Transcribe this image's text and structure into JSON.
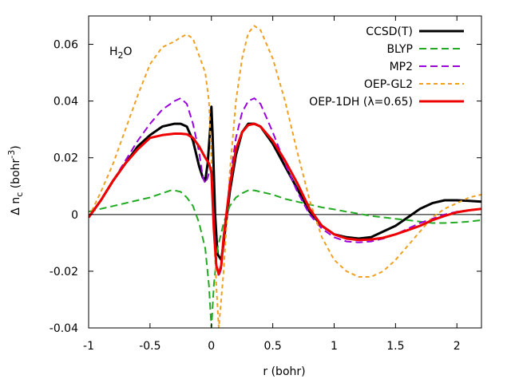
{
  "chart_data": {
    "type": "line",
    "annotation": {
      "text": "H",
      "sub": "2",
      "rest": "O"
    },
    "xlabel": "r (bohr)",
    "ylabel": {
      "pre": "Δ n",
      "sub": "c",
      "mid": " (bohr",
      "sup": "-3",
      "post": ")"
    },
    "xlim": [
      -1,
      2.2
    ],
    "ylim": [
      -0.04,
      0.07
    ],
    "xticks": [
      {
        "v": -1,
        "label": "-1"
      },
      {
        "v": -0.5,
        "label": "-0.5"
      },
      {
        "v": 0,
        "label": "0"
      },
      {
        "v": 0.5,
        "label": "0.5"
      },
      {
        "v": 1,
        "label": "1"
      },
      {
        "v": 1.5,
        "label": "1.5"
      },
      {
        "v": 2,
        "label": "2"
      }
    ],
    "yticks": [
      {
        "v": -0.04,
        "label": "-0.04"
      },
      {
        "v": -0.02,
        "label": "-0.02"
      },
      {
        "v": 0,
        "label": "0"
      },
      {
        "v": 0.02,
        "label": "0.02"
      },
      {
        "v": 0.04,
        "label": "0.04"
      },
      {
        "v": 0.06,
        "label": "0.06"
      }
    ],
    "grid": false,
    "legend_position": "top-right",
    "zero_line": true,
    "series": [
      {
        "name": "CCSD(T)",
        "color": "#000000",
        "dash": "solid",
        "points": [
          [
            -1,
            -0.001
          ],
          [
            -0.9,
            0.005
          ],
          [
            -0.8,
            0.012
          ],
          [
            -0.7,
            0.018
          ],
          [
            -0.6,
            0.024
          ],
          [
            -0.5,
            0.028
          ],
          [
            -0.4,
            0.031
          ],
          [
            -0.3,
            0.032
          ],
          [
            -0.25,
            0.032
          ],
          [
            -0.2,
            0.031
          ],
          [
            -0.15,
            0.026
          ],
          [
            -0.1,
            0.017
          ],
          [
            -0.07,
            0.013
          ],
          [
            -0.05,
            0.012
          ],
          [
            -0.03,
            0.018
          ],
          [
            -0.01,
            0.03
          ],
          [
            0.0,
            0.038
          ],
          [
            0.01,
            0.028
          ],
          [
            0.03,
            0.0
          ],
          [
            0.05,
            -0.014
          ],
          [
            0.08,
            -0.016
          ],
          [
            0.1,
            -0.01
          ],
          [
            0.15,
            0.008
          ],
          [
            0.2,
            0.021
          ],
          [
            0.25,
            0.029
          ],
          [
            0.3,
            0.032
          ],
          [
            0.35,
            0.032
          ],
          [
            0.4,
            0.031
          ],
          [
            0.5,
            0.025
          ],
          [
            0.6,
            0.017
          ],
          [
            0.7,
            0.009
          ],
          [
            0.8,
            0.001
          ],
          [
            0.9,
            -0.004
          ],
          [
            1.0,
            -0.007
          ],
          [
            1.1,
            -0.008
          ],
          [
            1.2,
            -0.0085
          ],
          [
            1.3,
            -0.008
          ],
          [
            1.4,
            -0.006
          ],
          [
            1.5,
            -0.004
          ],
          [
            1.6,
            -0.001
          ],
          [
            1.7,
            0.002
          ],
          [
            1.8,
            0.004
          ],
          [
            1.9,
            0.005
          ],
          [
            2.0,
            0.005
          ],
          [
            2.1,
            0.0048
          ],
          [
            2.2,
            0.0045
          ]
        ]
      },
      {
        "name": "BLYP",
        "color": "#22aa22",
        "dash": "longdash",
        "points": [
          [
            -1,
            0.001
          ],
          [
            -0.9,
            0.002
          ],
          [
            -0.8,
            0.003
          ],
          [
            -0.7,
            0.004
          ],
          [
            -0.6,
            0.005
          ],
          [
            -0.5,
            0.006
          ],
          [
            -0.4,
            0.0075
          ],
          [
            -0.33,
            0.0085
          ],
          [
            -0.3,
            0.0085
          ],
          [
            -0.25,
            0.008
          ],
          [
            -0.2,
            0.006
          ],
          [
            -0.15,
            0.003
          ],
          [
            -0.1,
            -0.003
          ],
          [
            -0.05,
            -0.012
          ],
          [
            -0.02,
            -0.025
          ],
          [
            0.0,
            -0.04
          ],
          [
            0.02,
            -0.025
          ],
          [
            0.05,
            -0.012
          ],
          [
            0.1,
            -0.003
          ],
          [
            0.15,
            0.003
          ],
          [
            0.2,
            0.006
          ],
          [
            0.25,
            0.0075
          ],
          [
            0.3,
            0.0085
          ],
          [
            0.35,
            0.0085
          ],
          [
            0.4,
            0.008
          ],
          [
            0.5,
            0.007
          ],
          [
            0.6,
            0.0055
          ],
          [
            0.7,
            0.0045
          ],
          [
            0.8,
            0.0035
          ],
          [
            0.9,
            0.0025
          ],
          [
            1.0,
            0.0018
          ],
          [
            1.1,
            0.001
          ],
          [
            1.2,
            0.0003
          ],
          [
            1.3,
            -0.0005
          ],
          [
            1.4,
            -0.001
          ],
          [
            1.5,
            -0.0015
          ],
          [
            1.6,
            -0.002
          ],
          [
            1.7,
            -0.0025
          ],
          [
            1.8,
            -0.003
          ],
          [
            1.9,
            -0.003
          ],
          [
            2.0,
            -0.0028
          ],
          [
            2.1,
            -0.0025
          ],
          [
            2.2,
            -0.002
          ]
        ]
      },
      {
        "name": "MP2",
        "color": "#9900dd",
        "dash": "longdash",
        "points": [
          [
            -1,
            -0.001
          ],
          [
            -0.9,
            0.005
          ],
          [
            -0.8,
            0.012
          ],
          [
            -0.7,
            0.019
          ],
          [
            -0.6,
            0.026
          ],
          [
            -0.5,
            0.032
          ],
          [
            -0.4,
            0.037
          ],
          [
            -0.3,
            0.04
          ],
          [
            -0.25,
            0.041
          ],
          [
            -0.2,
            0.039
          ],
          [
            -0.15,
            0.032
          ],
          [
            -0.1,
            0.022
          ],
          [
            -0.07,
            0.013
          ],
          [
            -0.05,
            0.011
          ],
          [
            -0.03,
            0.013
          ],
          [
            -0.01,
            0.016
          ],
          [
            0.0,
            0.014
          ],
          [
            0.02,
            0.0
          ],
          [
            0.04,
            -0.017
          ],
          [
            0.06,
            -0.022
          ],
          [
            0.08,
            -0.019
          ],
          [
            0.1,
            -0.01
          ],
          [
            0.15,
            0.012
          ],
          [
            0.2,
            0.027
          ],
          [
            0.25,
            0.036
          ],
          [
            0.3,
            0.04
          ],
          [
            0.35,
            0.041
          ],
          [
            0.4,
            0.039
          ],
          [
            0.5,
            0.029
          ],
          [
            0.6,
            0.018
          ],
          [
            0.7,
            0.008
          ],
          [
            0.8,
            0.0
          ],
          [
            0.9,
            -0.005
          ],
          [
            1.0,
            -0.008
          ],
          [
            1.1,
            -0.0095
          ],
          [
            1.2,
            -0.0098
          ],
          [
            1.3,
            -0.0095
          ],
          [
            1.4,
            -0.0085
          ],
          [
            1.5,
            -0.007
          ],
          [
            1.6,
            -0.005
          ],
          [
            1.7,
            -0.003
          ],
          [
            1.8,
            -0.0015
          ],
          [
            1.9,
            0.0
          ],
          [
            2.0,
            0.001
          ],
          [
            2.1,
            0.0015
          ],
          [
            2.2,
            0.002
          ]
        ]
      },
      {
        "name": "OEP-GL2",
        "color": "#f0a020",
        "dash": "shortdash",
        "points": [
          [
            -1,
            -0.001
          ],
          [
            -0.9,
            0.008
          ],
          [
            -0.8,
            0.018
          ],
          [
            -0.7,
            0.03
          ],
          [
            -0.6,
            0.042
          ],
          [
            -0.5,
            0.053
          ],
          [
            -0.4,
            0.059
          ],
          [
            -0.3,
            0.061
          ],
          [
            -0.25,
            0.0625
          ],
          [
            -0.2,
            0.0635
          ],
          [
            -0.15,
            0.062
          ],
          [
            -0.1,
            0.056
          ],
          [
            -0.05,
            0.05
          ],
          [
            -0.02,
            0.04
          ],
          [
            0.0,
            0.02
          ],
          [
            0.02,
            -0.005
          ],
          [
            0.04,
            -0.025
          ],
          [
            0.06,
            -0.04
          ],
          [
            0.1,
            -0.02
          ],
          [
            0.15,
            0.015
          ],
          [
            0.2,
            0.04
          ],
          [
            0.25,
            0.055
          ],
          [
            0.3,
            0.064
          ],
          [
            0.35,
            0.0665
          ],
          [
            0.4,
            0.065
          ],
          [
            0.5,
            0.055
          ],
          [
            0.6,
            0.04
          ],
          [
            0.7,
            0.022
          ],
          [
            0.8,
            0.005
          ],
          [
            0.9,
            -0.008
          ],
          [
            1.0,
            -0.016
          ],
          [
            1.1,
            -0.02
          ],
          [
            1.2,
            -0.022
          ],
          [
            1.3,
            -0.022
          ],
          [
            1.4,
            -0.02
          ],
          [
            1.5,
            -0.016
          ],
          [
            1.6,
            -0.011
          ],
          [
            1.7,
            -0.006
          ],
          [
            1.8,
            -0.001
          ],
          [
            1.9,
            0.002
          ],
          [
            2.0,
            0.004
          ],
          [
            2.1,
            0.006
          ],
          [
            2.2,
            0.007
          ]
        ]
      },
      {
        "name": "OEP-1DH (λ=0.65)",
        "color": "#ee0000",
        "dash": "solid",
        "points": [
          [
            -1,
            -0.001
          ],
          [
            -0.9,
            0.005
          ],
          [
            -0.8,
            0.012
          ],
          [
            -0.7,
            0.018
          ],
          [
            -0.6,
            0.023
          ],
          [
            -0.5,
            0.027
          ],
          [
            -0.4,
            0.028
          ],
          [
            -0.3,
            0.0285
          ],
          [
            -0.25,
            0.0285
          ],
          [
            -0.2,
            0.0283
          ],
          [
            -0.15,
            0.027
          ],
          [
            -0.1,
            0.024
          ],
          [
            -0.05,
            0.02
          ],
          [
            -0.02,
            0.018
          ],
          [
            0.0,
            0.015
          ],
          [
            0.02,
            -0.005
          ],
          [
            0.04,
            -0.018
          ],
          [
            0.06,
            -0.021
          ],
          [
            0.08,
            -0.018
          ],
          [
            0.1,
            -0.008
          ],
          [
            0.15,
            0.01
          ],
          [
            0.2,
            0.023
          ],
          [
            0.25,
            0.029
          ],
          [
            0.3,
            0.0315
          ],
          [
            0.35,
            0.032
          ],
          [
            0.4,
            0.031
          ],
          [
            0.5,
            0.026
          ],
          [
            0.6,
            0.019
          ],
          [
            0.7,
            0.011
          ],
          [
            0.8,
            0.002
          ],
          [
            0.9,
            -0.004
          ],
          [
            1.0,
            -0.007
          ],
          [
            1.1,
            -0.0085
          ],
          [
            1.2,
            -0.009
          ],
          [
            1.3,
            -0.0088
          ],
          [
            1.4,
            -0.0082
          ],
          [
            1.5,
            -0.007
          ],
          [
            1.6,
            -0.0055
          ],
          [
            1.7,
            -0.004
          ],
          [
            1.8,
            -0.002
          ],
          [
            1.9,
            -0.0005
          ],
          [
            2.0,
            0.0008
          ],
          [
            2.1,
            0.0015
          ],
          [
            2.2,
            0.002
          ]
        ]
      }
    ]
  }
}
